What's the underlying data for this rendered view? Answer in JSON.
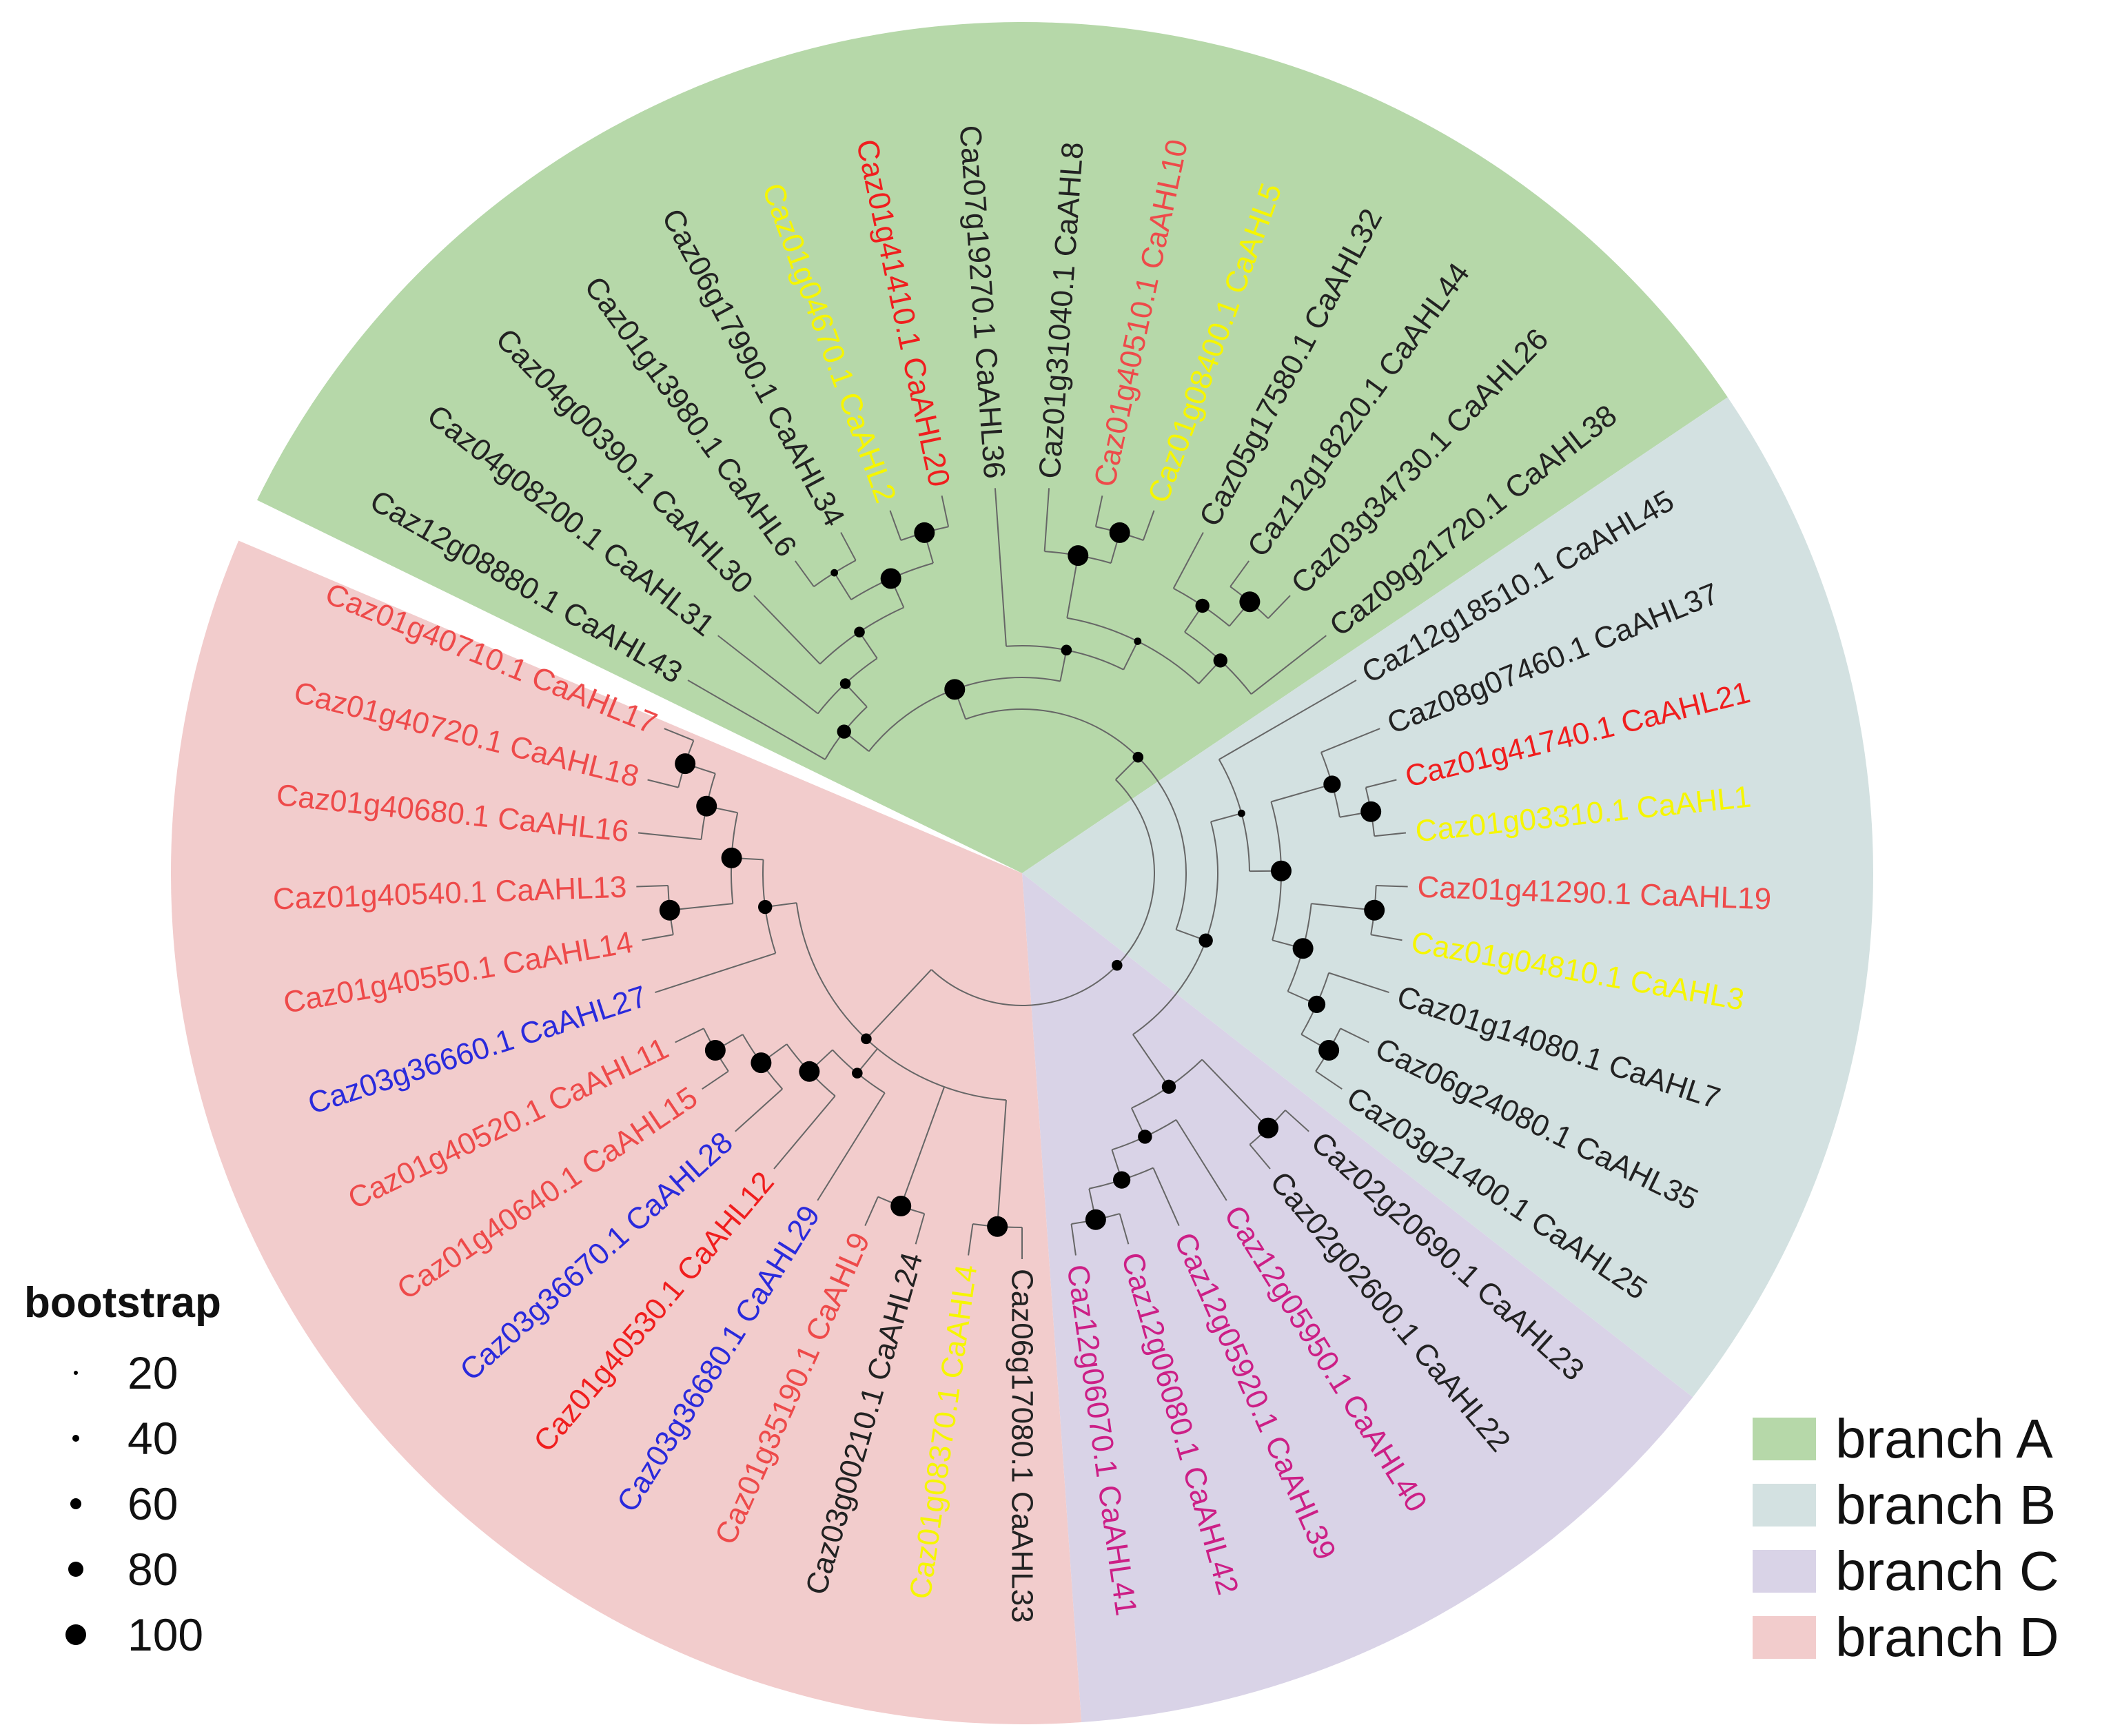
{
  "palette": {
    "black": "#222222",
    "yellow": "#f6f600",
    "red": "#f01e1e",
    "salmon": "#ee4a4a",
    "blue": "#2a2adc",
    "magenta": "#cc1f86",
    "branchA": "#b6d8a9",
    "branchB": "#d3e1e1",
    "branchC": "#d9d3e7",
    "branchD": "#f2cccc"
  },
  "leaves": [
    {
      "label": "Caz12g08880.1 CaAHL43",
      "color": "black"
    },
    {
      "label": "Caz04g08200.1 CaAHL31",
      "color": "black"
    },
    {
      "label": "Caz04g00390.1 CaAHL30",
      "color": "black"
    },
    {
      "label": "Caz01g13980.1 CaAHL6",
      "color": "black"
    },
    {
      "label": "Caz06g17990.1 CaAHL34",
      "color": "black"
    },
    {
      "label": "Caz01g04670.1 CaAHL2",
      "color": "yellow"
    },
    {
      "label": "Caz01g41410.1 CaAHL20",
      "color": "red"
    },
    {
      "label": "Caz07g19270.1 CaAHL36",
      "color": "black"
    },
    {
      "label": "Caz01g31040.1 CaAHL8",
      "color": "black"
    },
    {
      "label": "Caz01g40510.1 CaAHL10",
      "color": "salmon"
    },
    {
      "label": "Caz01g08400.1 CaAHL5",
      "color": "yellow"
    },
    {
      "label": "Caz05g17580.1 CaAHL32",
      "color": "black"
    },
    {
      "label": "Caz12g18220.1 CaAHL44",
      "color": "black"
    },
    {
      "label": "Caz03g34730.1 CaAHL26",
      "color": "black"
    },
    {
      "label": "Caz09g21720.1 CaAHL38",
      "color": "black"
    },
    {
      "label": "Caz12g18510.1 CaAHL45",
      "color": "black"
    },
    {
      "label": "Caz08g07460.1 CaAHL37",
      "color": "black"
    },
    {
      "label": "Caz01g41740.1 CaAHL21",
      "color": "red"
    },
    {
      "label": "Caz01g03310.1 CaAHL1",
      "color": "yellow"
    },
    {
      "label": "Caz01g41290.1 CaAHL19",
      "color": "salmon"
    },
    {
      "label": "Caz01g04810.1 CaAHL3",
      "color": "yellow"
    },
    {
      "label": "Caz01g14080.1 CaAHL7",
      "color": "black"
    },
    {
      "label": "Caz06g24080.1 CaAHL35",
      "color": "black"
    },
    {
      "label": "Caz03g21400.1 CaAHL25",
      "color": "black"
    },
    {
      "label": "Caz02g20690.1 CaAHL23",
      "color": "black"
    },
    {
      "label": "Caz02g02600.1 CaAHL22",
      "color": "black"
    },
    {
      "label": "Caz12g05950.1 CaAHL40",
      "color": "magenta"
    },
    {
      "label": "Caz12g05920.1 CaAHL39",
      "color": "magenta"
    },
    {
      "label": "Caz12g06080.1 CaAHL42",
      "color": "magenta"
    },
    {
      "label": "Caz12g06070.1 CaAHL41",
      "color": "magenta"
    },
    {
      "label": "Caz06g17080.1 CaAHL33",
      "color": "black"
    },
    {
      "label": "Caz01g08370.1 CaAHL4",
      "color": "yellow"
    },
    {
      "label": "Caz03g00210.1 CaAHL24",
      "color": "black"
    },
    {
      "label": "Caz01g35190.1 CaAHL9",
      "color": "salmon"
    },
    {
      "label": "Caz03g36680.1 CaAHL29",
      "color": "blue"
    },
    {
      "label": "Caz01g40530.1 CaAHL12",
      "color": "red"
    },
    {
      "label": "Caz03g36670.1 CaAHL28",
      "color": "blue"
    },
    {
      "label": "Caz01g40640.1 CaAHL15",
      "color": "salmon"
    },
    {
      "label": "Caz01g40520.1 CaAHL11",
      "color": "salmon"
    },
    {
      "label": "Caz03g36660.1 CaAHL27",
      "color": "blue"
    },
    {
      "label": "Caz01g40550.1 CaAHL14",
      "color": "salmon"
    },
    {
      "label": "Caz01g40540.1 CaAHL13",
      "color": "salmon"
    },
    {
      "label": "Caz01g40680.1 CaAHL16",
      "color": "salmon"
    },
    {
      "label": "Caz01g40720.1 CaAHL18",
      "color": "salmon"
    },
    {
      "label": "Caz01g40710.1 CaAHL17",
      "color": "salmon"
    }
  ],
  "branches": [
    {
      "name": "branch A",
      "color": "branchA",
      "first_leaf": 0,
      "last_leaf": 14
    },
    {
      "name": "branch B",
      "color": "branchB",
      "first_leaf": 15,
      "last_leaf": 23
    },
    {
      "name": "branch C",
      "color": "branchC",
      "first_leaf": 24,
      "last_leaf": 29
    },
    {
      "name": "branch D",
      "color": "branchD",
      "first_leaf": 30,
      "last_leaf": 44
    }
  ],
  "tree": [
    40,
    [
      40,
      [
        100,
        [
          60,
          0,
          [
            40,
            1,
            [
              40,
              2,
              [
                100,
                [
                  20,
                  3,
                  4
                ],
                [
                  100,
                  5,
                  6
                ]
              ]
            ]
          ]
        ],
        [
          40,
          7,
          [
            20,
            [
              100,
              8,
              [
                100,
                9,
                10
              ]
            ],
            [
              60,
              [
                60,
                11,
                [
                  100,
                  12,
                  13
                ]
              ],
              14
            ]
          ]
        ]
      ],
      [
        60,
        [
          20,
          15,
          [
            100,
            [
              80,
              16,
              [
                100,
                17,
                18
              ]
            ],
            [
              100,
              [
                100,
                19,
                20
              ],
              [
                80,
                21,
                [
                  100,
                  22,
                  23
                ]
              ]
            ]
          ]
        ],
        [
          60,
          [
            100,
            24,
            25
          ],
          [
            60,
            26,
            [
              80,
              27,
              [
                100,
                28,
                29
              ]
            ]
          ]
        ]
      ]
    ],
    [
      40,
      [
        100,
        30,
        31
      ],
      [
        100,
        32,
        33
      ],
      [
        40,
        34,
        [
          100,
          35,
          [
            100,
            36,
            [
              100,
              37,
              38
            ]
          ]
        ]
      ],
      [
        60,
        39,
        [
          100,
          [
            100,
            40,
            41
          ],
          [
            100,
            42,
            [
              100,
              43,
              44
            ]
          ]
        ]
      ]
    ]
  ],
  "legend": {
    "bootstrap_title": "bootstrap",
    "bootstrap_values": [
      "20",
      "40",
      "60",
      "80",
      "100"
    ]
  }
}
